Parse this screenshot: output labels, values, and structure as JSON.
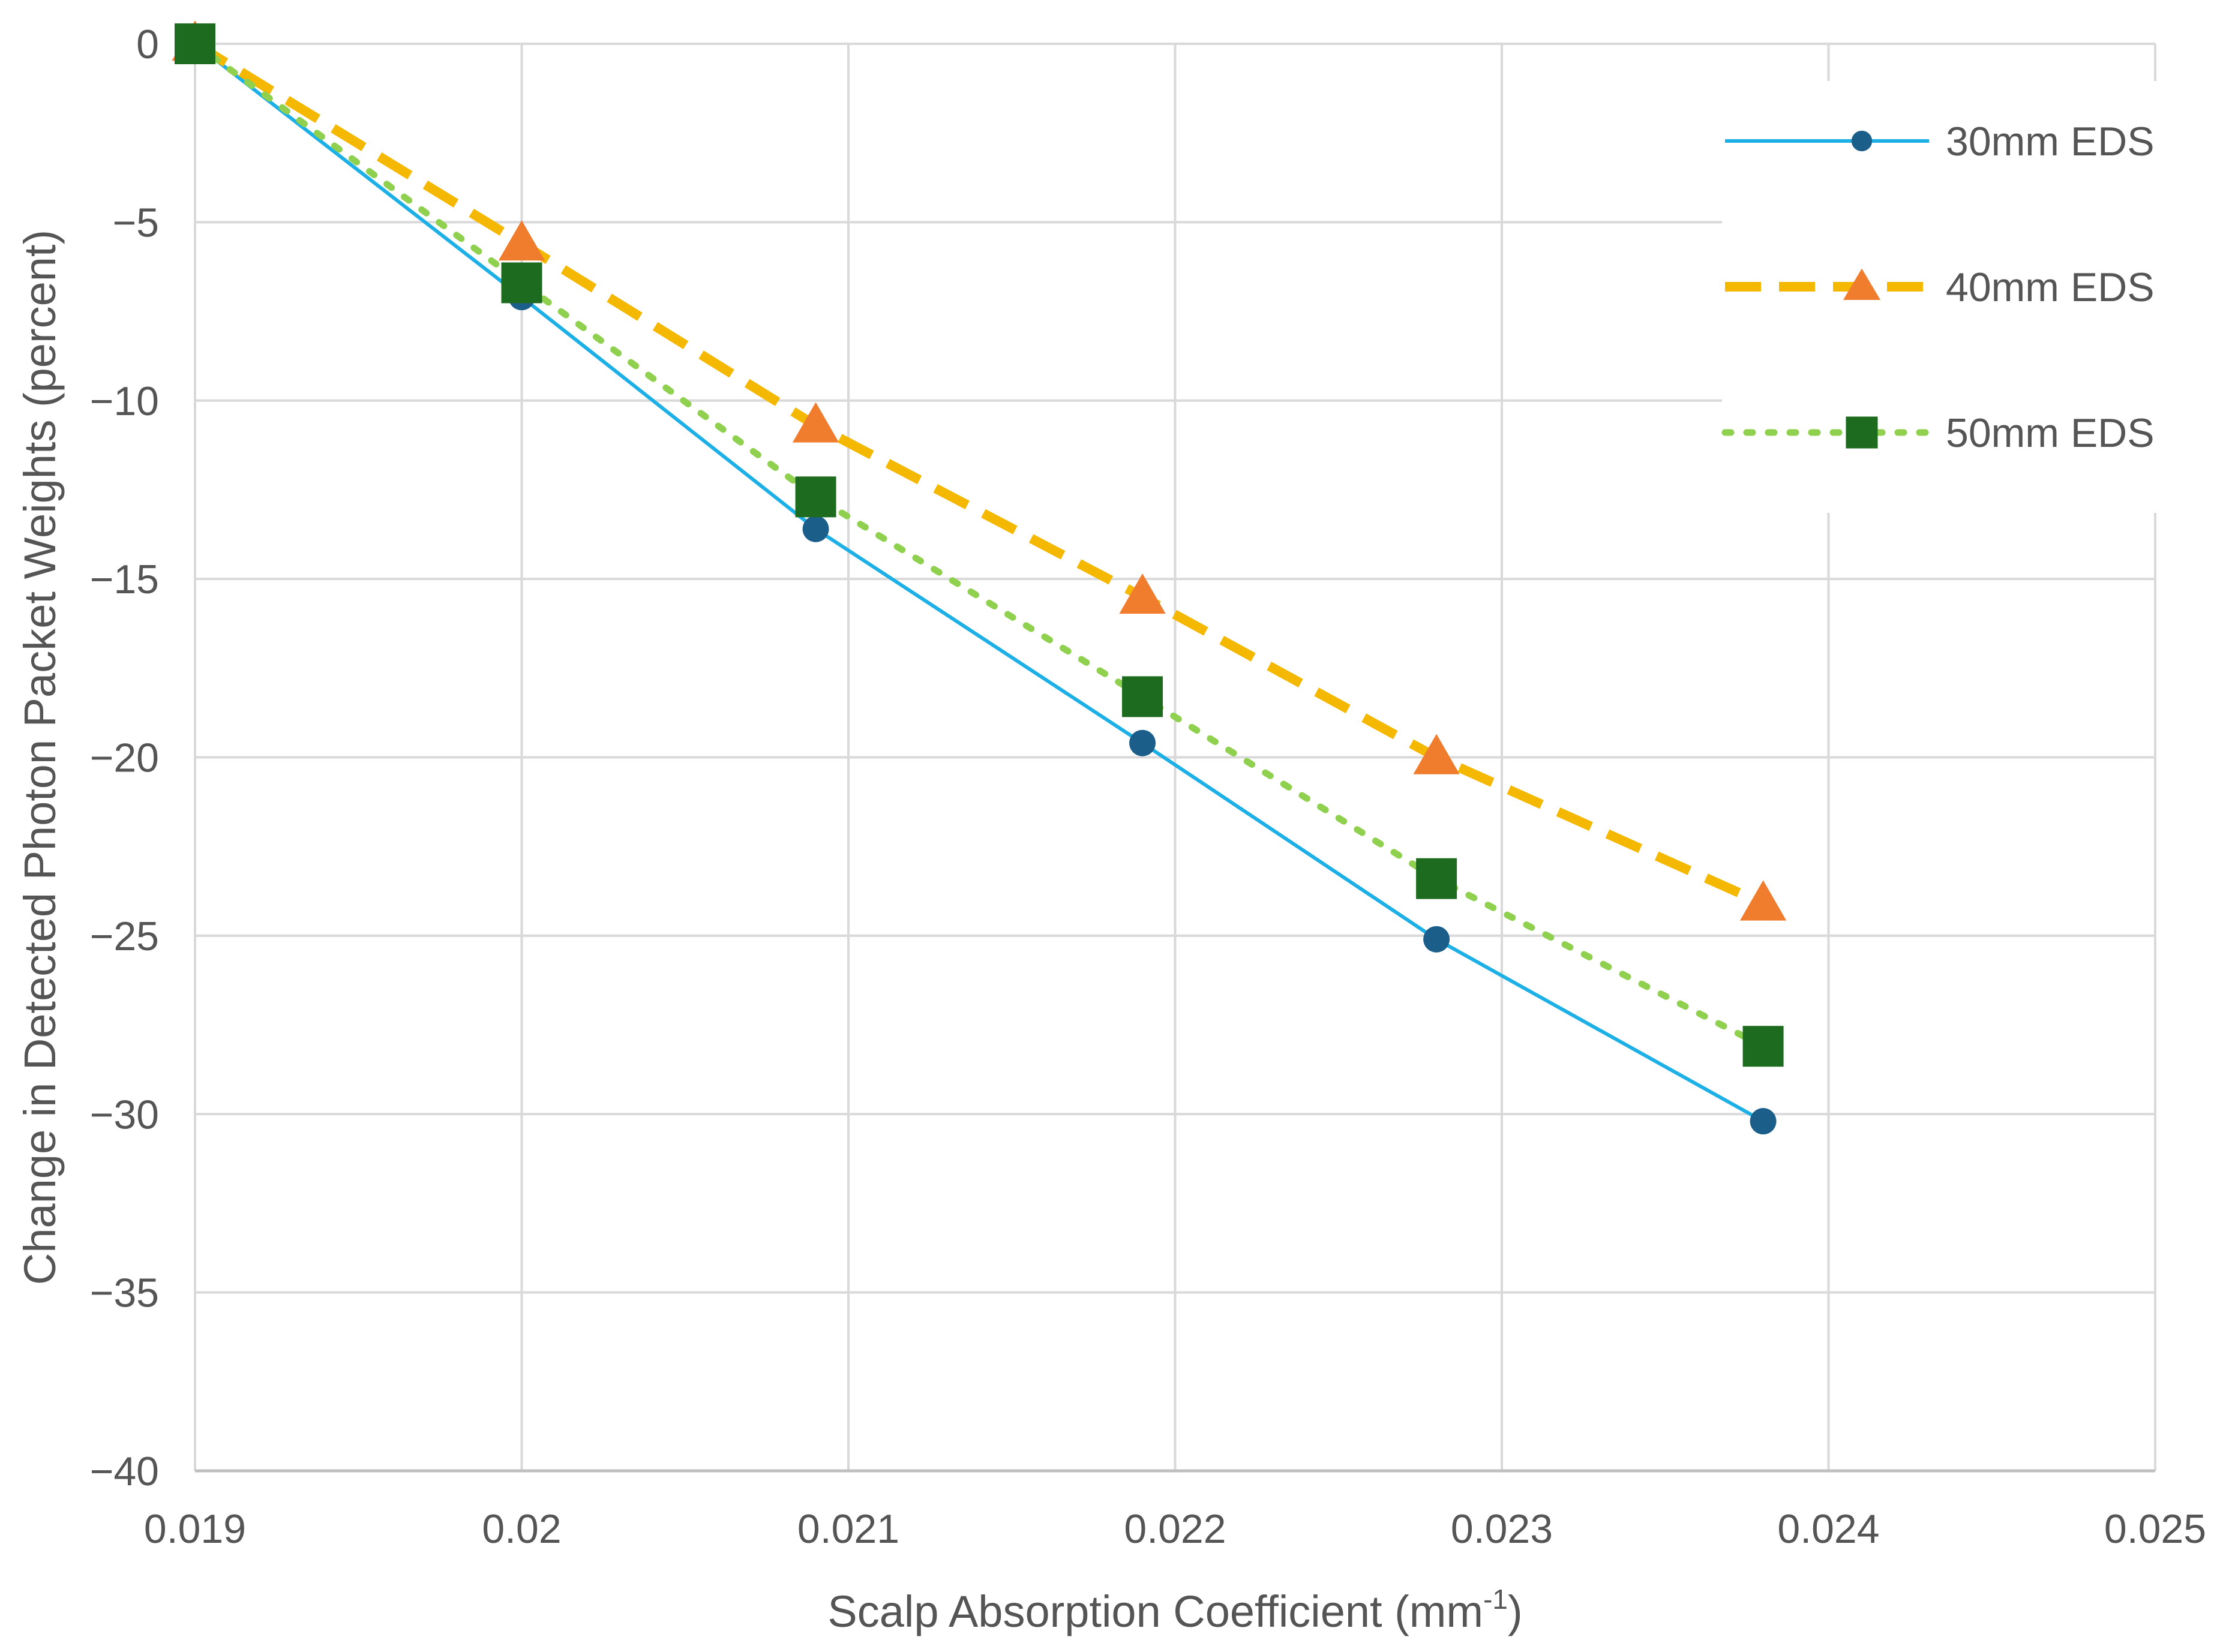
{
  "chart_data": {
    "type": "line",
    "title": "",
    "xlabel": "Scalp Absorption Coefficient (mm",
    "xlabel_superscript": "-1",
    "xlabel_suffix": ")",
    "ylabel": "Change in Detected Photon Packet Weights (percent)",
    "xlim": [
      0.019,
      0.025
    ],
    "ylim": [
      -40,
      0
    ],
    "x_ticks": [
      0.019,
      0.02,
      0.021,
      0.022,
      0.023,
      0.024,
      0.025
    ],
    "x_tick_labels": [
      "0.019",
      "0.02",
      "0.021",
      "0.022",
      "0.023",
      "0.024",
      "0.025"
    ],
    "y_ticks": [
      0,
      -5,
      -10,
      -15,
      -20,
      -25,
      -30,
      -35,
      -40
    ],
    "y_tick_labels": [
      "0",
      "−5",
      "−10",
      "−15",
      "−20",
      "−25",
      "−30",
      "−35",
      "−40"
    ],
    "grid": true,
    "legend_position": "top-right",
    "x": [
      0.019,
      0.02,
      0.0209,
      0.0219,
      0.0228,
      0.0238
    ],
    "series": [
      {
        "name": "30mm EDS",
        "values": [
          0,
          -7.1,
          -13.6,
          -19.6,
          -25.1,
          -30.2
        ],
        "line_color": "#1cb0e6",
        "marker_color": "#1b5e8a",
        "line_style": "solid",
        "marker": "circle"
      },
      {
        "name": "40mm EDS",
        "values": [
          0,
          -5.6,
          -10.7,
          -15.5,
          -20.0,
          -24.1
        ],
        "line_color": "#f5b800",
        "marker_color": "#f07d2e",
        "line_style": "dashed",
        "marker": "triangle"
      },
      {
        "name": "50mm EDS",
        "values": [
          0,
          -6.7,
          -12.7,
          -18.3,
          -23.4,
          -28.1
        ],
        "line_color": "#8fd14f",
        "marker_color": "#1d6b1f",
        "line_style": "dotted",
        "marker": "square"
      }
    ]
  }
}
